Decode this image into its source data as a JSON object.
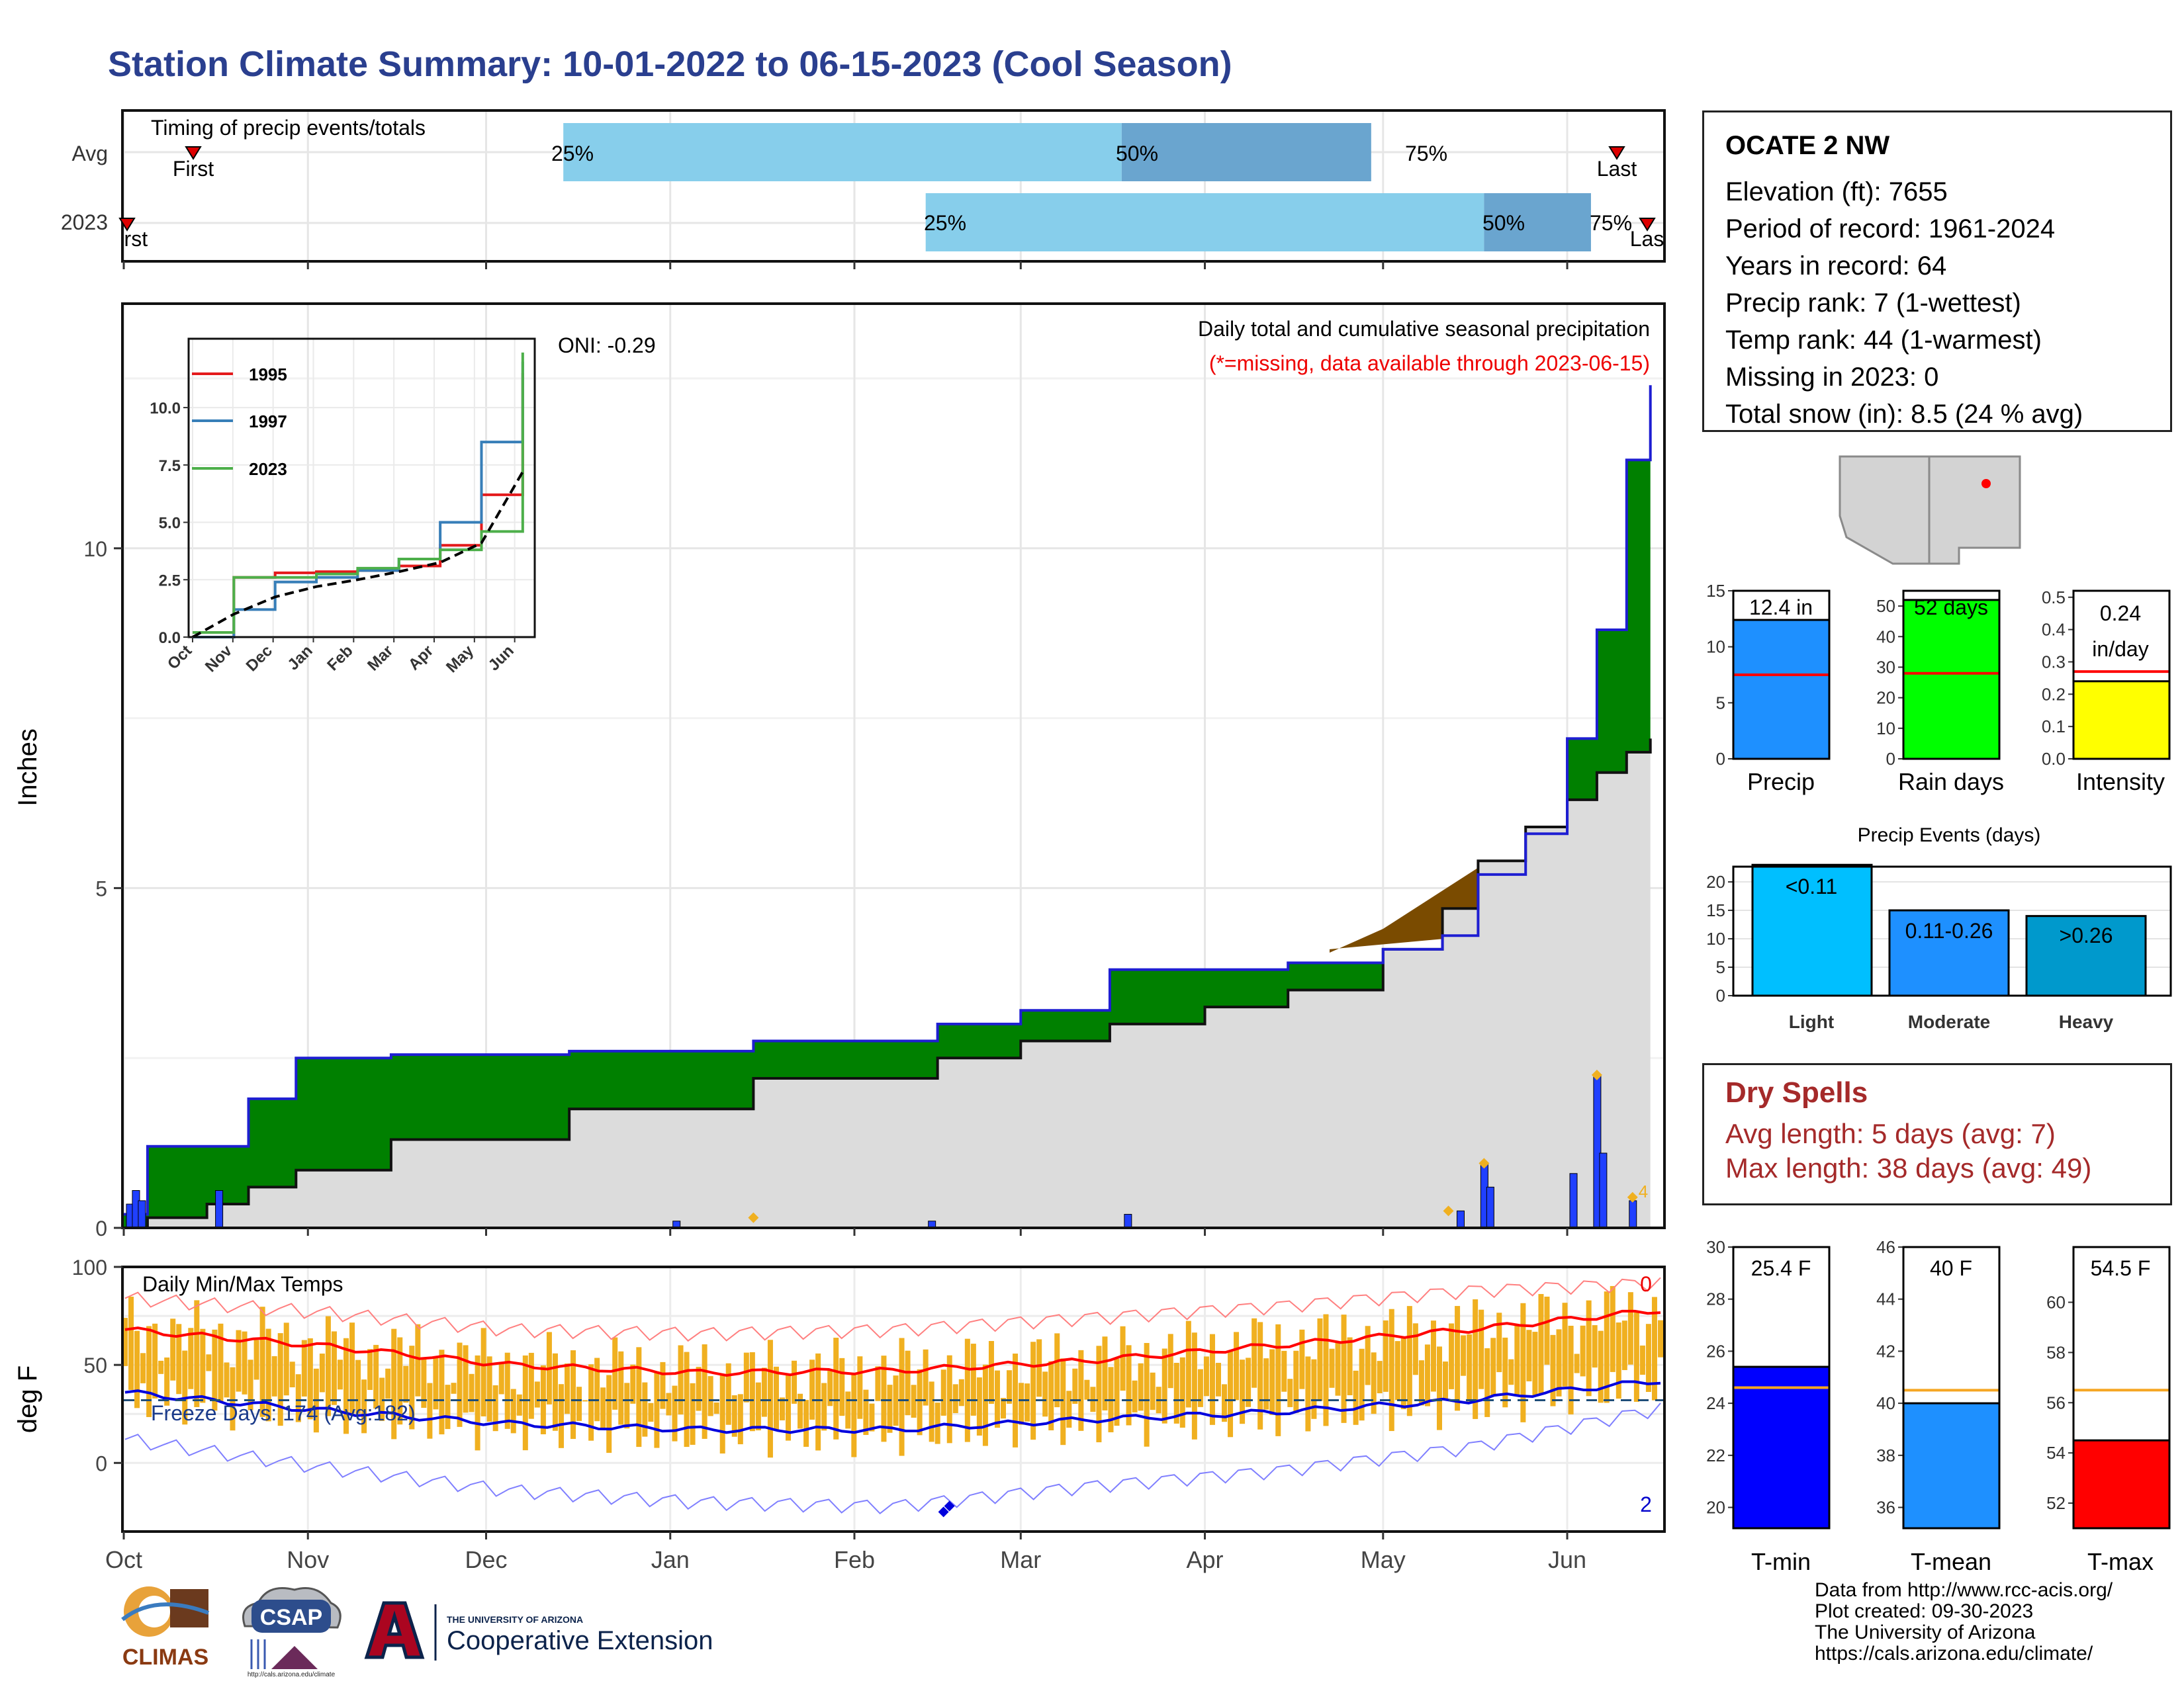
{
  "title": "Station Climate Summary: 10-01-2022 to 06-15-2023 (Cool Season)",
  "timing": {
    "label": "Timing of precip events/totals",
    "rows": [
      "Avg",
      "2023"
    ],
    "avg": {
      "first_label": "First",
      "last_label": "Last",
      "p25": "25%",
      "p50": "50%",
      "p75": "75%"
    },
    "y2023": {
      "first_label": "First",
      "last_label": "Last",
      "p25": "25%",
      "p50": "50%",
      "p75": "75%"
    }
  },
  "station": {
    "name": "OCATE 2 NW",
    "lines": [
      "Elevation (ft): 7655",
      "Period of record: 1961-2024",
      "Years in record: 64",
      "Precip rank: 7 (1-wettest)",
      "Temp rank: 44 (1-warmest)",
      "Missing in 2023: 0",
      "Total snow (in): 8.5 (24 % avg)"
    ]
  },
  "precip_panel": {
    "ylabel": "Inches",
    "oni": "ONI: -0.29",
    "caption": "Daily total and cumulative seasonal precipitation",
    "missing_note": "(*=missing, data available through 2023-06-15)",
    "yticks": [
      "0",
      "5",
      "10"
    ],
    "count_label": "4"
  },
  "inset": {
    "legend": [
      "1995",
      "1997",
      "2023"
    ],
    "yticks": [
      "0.0",
      "2.5",
      "5.0",
      "7.5",
      "10.0"
    ],
    "xticks": [
      "Oct",
      "Nov",
      "Dec",
      "Jan",
      "Feb",
      "Mar",
      "Apr",
      "May",
      "Jun"
    ]
  },
  "months": [
    "Oct",
    "Nov",
    "Dec",
    "Jan",
    "Feb",
    "Mar",
    "Apr",
    "May",
    "Jun"
  ],
  "temp_panel": {
    "ylabel": "deg F",
    "label": "Daily Min/Max Temps",
    "freeze": "Freeze Days: 174 (Avg:182)",
    "yticks": [
      "0",
      "50",
      "100"
    ],
    "record_high_count": "0",
    "record_low_count": "2"
  },
  "mini_precip": {
    "precip": {
      "label": "Precip",
      "value_label": "12.4 in",
      "yticks": [
        "0",
        "5",
        "10",
        "15"
      ]
    },
    "rain_days": {
      "label": "Rain days",
      "value_label": "52 days",
      "yticks": [
        "0",
        "10",
        "20",
        "30",
        "40",
        "50"
      ]
    },
    "intensity": {
      "label": "Intensity",
      "value_label": "0.24",
      "unit_label": "in/day",
      "yticks": [
        "0.0",
        "0.1",
        "0.2",
        "0.3",
        "0.4",
        "0.5"
      ]
    }
  },
  "events": {
    "title": "Precip Events (days)",
    "yticks": [
      "0",
      "5",
      "10",
      "15",
      "20"
    ],
    "bars": [
      {
        "category": "Light",
        "range": "<0.11"
      },
      {
        "category": "Moderate",
        "range": "0.11-0.26"
      },
      {
        "category": "Heavy",
        "range": ">0.26"
      }
    ]
  },
  "dry_spells": {
    "title": "Dry Spells",
    "avg": "Avg length: 5 days (avg: 7)",
    "max": "Max length: 38 days (avg: 49)"
  },
  "temp_bars": {
    "tmin": {
      "label": "T-min",
      "value_label": "25.4 F",
      "yticks": [
        "20",
        "22",
        "24",
        "26",
        "28",
        "30"
      ]
    },
    "tmean": {
      "label": "T-mean",
      "value_label": "40 F",
      "yticks": [
        "36",
        "38",
        "40",
        "42",
        "44",
        "46"
      ]
    },
    "tmax": {
      "label": "T-max",
      "value_label": "54.5 F",
      "yticks": [
        "52",
        "54",
        "56",
        "58",
        "60"
      ]
    }
  },
  "footer": {
    "lines": [
      "Data from http://www.rcc-acis.org/",
      "Plot created: 09-30-2023",
      "The University of Arizona",
      "https://cals.arizona.edu/climate/"
    ],
    "logos": {
      "climas": "CLIMAS",
      "csap": "CSAP",
      "csap_url": "http://cals.arizona.edu/climate",
      "ua_small": "THE UNIVERSITY OF ARIZONA",
      "ua_large": "Cooperative Extension",
      "ua_letter": "A"
    }
  },
  "colors": {
    "title": "#2a3f8f",
    "light_blue": "#87ceeb",
    "mid_blue": "#6aa5cf",
    "green": "#008000",
    "brown": "#7a4b00",
    "gray_fill": "#dcdcdc",
    "cum_line": "#1e1ed2",
    "orange": "#f0b020",
    "red": "#ff0000",
    "navy": "#0000cc",
    "dry": "#a52a2a"
  },
  "chart_data": [
    {
      "type": "bar",
      "title": "Timing of precip events/totals",
      "series": [
        {
          "name": "Avg",
          "p25_date": "2022-12-14",
          "p50_date": "2023-03-18",
          "p75_date": "2023-04-29",
          "first_date": "2022-10-13",
          "last_date": "2023-06-11"
        },
        {
          "name": "2023",
          "p25_date": "2023-02-13",
          "p50_date": "2023-05-18",
          "p75_date": "2023-06-05",
          "first_date": "2022-10-01",
          "last_date": "2023-06-12"
        }
      ]
    },
    {
      "type": "area",
      "title": "Daily total and cumulative seasonal precipitation",
      "ylabel": "Inches",
      "ylim": [
        0,
        13.6
      ],
      "x": [
        "2022-10-01",
        "2022-10-05",
        "2022-10-15",
        "2022-10-22",
        "2022-10-30",
        "2022-11-15",
        "2022-12-15",
        "2023-01-15",
        "2023-02-15",
        "2023-03-01",
        "2023-03-16",
        "2023-04-01",
        "2023-04-15",
        "2023-05-01",
        "2023-05-11",
        "2023-05-17",
        "2023-05-25",
        "2023-06-01",
        "2023-06-06",
        "2023-06-11",
        "2023-06-15"
      ],
      "series": [
        {
          "name": "2023",
          "values": [
            0.2,
            1.2,
            1.2,
            1.9,
            2.5,
            2.55,
            2.6,
            2.75,
            3.0,
            3.2,
            3.8,
            3.8,
            3.9,
            4.1,
            4.3,
            5.2,
            5.8,
            7.2,
            8.8,
            11.3,
            12.4
          ]
        },
        {
          "name": "Avg",
          "values": [
            0.0,
            0.15,
            0.35,
            0.6,
            0.85,
            1.3,
            1.75,
            2.2,
            2.5,
            2.75,
            3.0,
            3.25,
            3.5,
            4.1,
            4.7,
            5.4,
            5.9,
            6.3,
            6.7,
            7.0,
            7.2
          ]
        }
      ],
      "daily_precip": {
        "x": [
          "2022-10-02",
          "2022-10-03",
          "2022-10-04",
          "2022-10-17",
          "2023-01-02",
          "2023-02-14",
          "2023-03-19",
          "2023-05-14",
          "2023-05-18",
          "2023-05-19",
          "2023-06-02",
          "2023-06-06",
          "2023-06-07",
          "2023-06-12"
        ],
        "values": [
          0.35,
          0.55,
          0.4,
          0.55,
          0.1,
          0.1,
          0.2,
          0.25,
          0.95,
          0.6,
          0.8,
          2.25,
          1.1,
          0.4
        ]
      }
    },
    {
      "type": "line",
      "title": "Inset: cumulative precipitation",
      "x": [
        "Oct",
        "Nov",
        "Dec",
        "Jan",
        "Feb",
        "Mar",
        "Apr",
        "May",
        "Jun-mid"
      ],
      "ylim": [
        0,
        13
      ],
      "series": [
        {
          "name": "1995",
          "values": [
            0.0,
            2.6,
            2.8,
            2.85,
            2.9,
            3.1,
            4.0,
            6.2,
            11.5
          ]
        },
        {
          "name": "1997",
          "values": [
            0.0,
            1.2,
            2.4,
            2.6,
            2.9,
            3.4,
            5.0,
            8.5,
            12.0
          ]
        },
        {
          "name": "2023",
          "values": [
            0.2,
            2.6,
            2.6,
            2.75,
            3.0,
            3.4,
            3.8,
            4.6,
            12.4
          ]
        },
        {
          "name": "Avg",
          "values": [
            0.0,
            1.0,
            1.75,
            2.2,
            2.5,
            2.85,
            3.25,
            4.1,
            7.2
          ]
        }
      ]
    },
    {
      "type": "line",
      "title": "Daily Min/Max Temps",
      "ylabel": "deg F",
      "ylim": [
        -35,
        100
      ],
      "x": [
        "Oct",
        "Nov",
        "Dec",
        "Jan",
        "Feb",
        "Mar",
        "Apr",
        "May",
        "Jun"
      ],
      "series": [
        {
          "name": "avg max",
          "values": [
            68,
            60,
            50,
            46,
            47,
            52,
            60,
            68,
            78
          ]
        },
        {
          "name": "avg min",
          "values": [
            36,
            27,
            20,
            17,
            17,
            22,
            26,
            32,
            42
          ]
        },
        {
          "name": "record max",
          "values": [
            84,
            77,
            68,
            66,
            68,
            74,
            80,
            88,
            92
          ]
        },
        {
          "name": "record min",
          "values": [
            12,
            -2,
            -14,
            -20,
            -22,
            -12,
            -4,
            8,
            28
          ]
        }
      ],
      "freeze_threshold": 32
    },
    {
      "type": "bar",
      "title": "Season summary bars",
      "categories": [
        "Precip",
        "Rain days",
        "Intensity"
      ],
      "values": [
        12.4,
        52,
        0.24
      ],
      "averages": [
        7.5,
        28,
        0.27
      ]
    },
    {
      "type": "bar",
      "title": "Precip Events (days)",
      "categories": [
        "Light",
        "Moderate",
        "Heavy"
      ],
      "values": [
        23,
        15,
        14
      ]
    },
    {
      "type": "bar",
      "title": "Temperature summary",
      "categories": [
        "T-min",
        "T-mean",
        "T-max"
      ],
      "values": [
        25.4,
        40,
        54.5
      ],
      "averages": [
        24.6,
        40.5,
        56.5
      ]
    }
  ]
}
